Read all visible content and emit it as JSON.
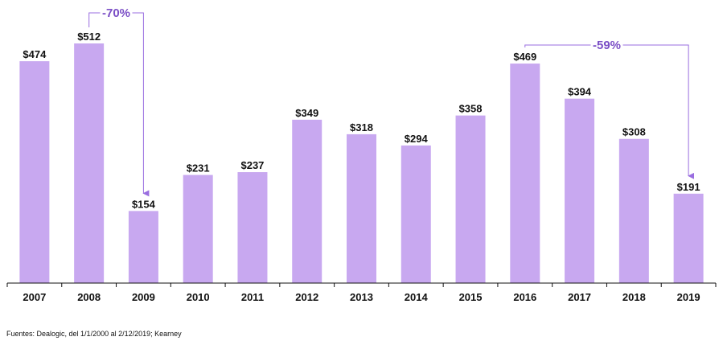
{
  "chart_data": {
    "type": "bar",
    "categories": [
      "2007",
      "2008",
      "2009",
      "2010",
      "2011",
      "2012",
      "2013",
      "2014",
      "2015",
      "2016",
      "2017",
      "2018",
      "2019"
    ],
    "values": [
      474,
      512,
      154,
      231,
      237,
      349,
      318,
      294,
      358,
      469,
      394,
      308,
      191
    ],
    "value_labels": [
      "$474",
      "$512",
      "$154",
      "$231",
      "$237",
      "$349",
      "$318",
      "$294",
      "$358",
      "$469",
      "$394",
      "$308",
      "$191"
    ],
    "ylim": [
      0,
      512
    ],
    "grid": false,
    "bar_color": "#c8a8f0",
    "annotation_color": "#9a6ee0",
    "annotations": [
      {
        "label": "-70%",
        "from_category": "2008",
        "to_category": "2009"
      },
      {
        "label": "-59%",
        "from_category": "2016",
        "to_category": "2019"
      }
    ]
  },
  "source_note": "Fuentes: Dealogic, del 1/1/2000 al 2/12/2019; Kearney"
}
